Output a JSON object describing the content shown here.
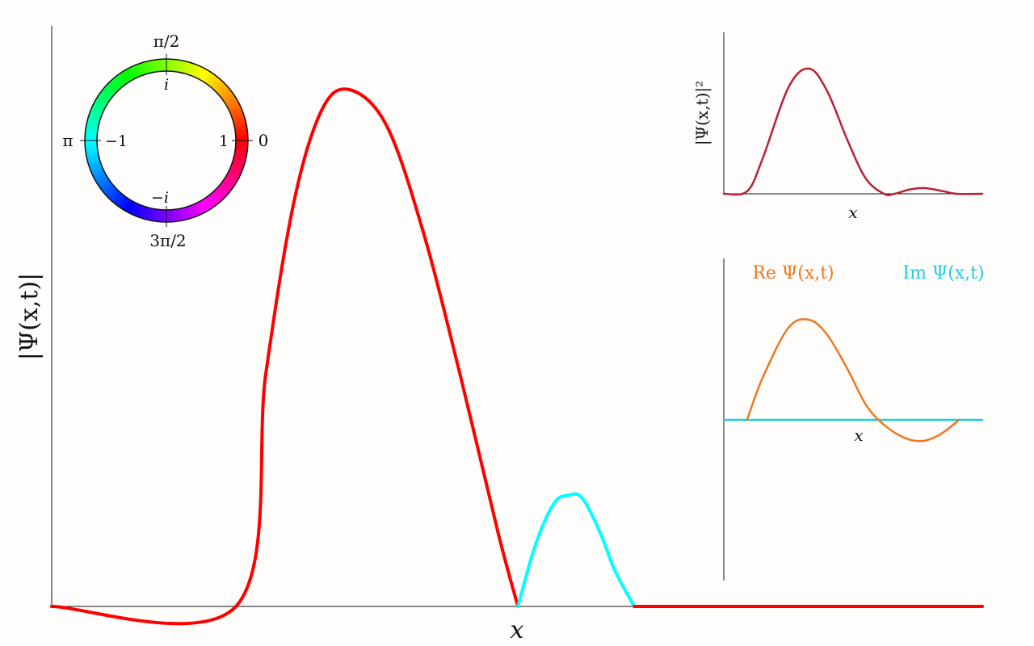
{
  "chart_data": [
    {
      "type": "line",
      "title": "",
      "xlabel": "x",
      "ylabel": "|Ψ(x,t)|",
      "color_encoding": "phase of Ψ (hue wheel)",
      "colors": {
        "positive": "#ff0000",
        "negative": "#00ffff"
      },
      "series": [
        {
          "phase": "0",
          "x": [
            0.0,
            0.198,
            0.23,
            0.26,
            0.29,
            0.32,
            0.36,
            0.4,
            0.44,
            0.48,
            0.501
          ],
          "y": [
            0.0,
            0.0,
            0.45,
            0.78,
            0.96,
            1.0,
            0.93,
            0.72,
            0.44,
            0.14,
            0.0
          ]
        },
        {
          "phase": "π",
          "x": [
            0.501,
            0.52,
            0.54,
            0.555,
            0.57,
            0.59,
            0.605,
            0.626
          ],
          "y": [
            0.0,
            0.12,
            0.2,
            0.215,
            0.21,
            0.14,
            0.07,
            0.0
          ]
        },
        {
          "phase": "0",
          "x": [
            0.626,
            1.0
          ],
          "y": [
            0.0,
            0.0
          ]
        }
      ]
    },
    {
      "type": "line",
      "xlabel": "x",
      "ylabel": "|Ψ(x,t)|²",
      "series": [
        {
          "color": "#b5223a",
          "x": [
            0.0,
            0.09,
            0.15,
            0.25,
            0.33,
            0.4,
            0.48,
            0.55,
            0.62,
            0.66,
            0.72,
            0.78,
            0.85,
            0.9,
            1.0
          ],
          "y": [
            0.0,
            0.02,
            0.28,
            0.85,
            1.0,
            0.82,
            0.42,
            0.12,
            0.0,
            0.0,
            0.035,
            0.045,
            0.02,
            0.0,
            0.0
          ]
        }
      ]
    },
    {
      "type": "line",
      "xlabel": "x",
      "legend": [
        "Re Ψ(x,t)",
        "Im Ψ(x,t)"
      ],
      "series": [
        {
          "name": "Re Ψ(x,t)",
          "color": "#ee7722",
          "x": [
            0.09,
            0.15,
            0.25,
            0.33,
            0.4,
            0.48,
            0.55,
            0.62,
            0.7,
            0.77,
            0.84,
            0.91
          ],
          "y": [
            0.0,
            0.42,
            0.92,
            1.0,
            0.85,
            0.5,
            0.15,
            -0.05,
            -0.18,
            -0.21,
            -0.14,
            0.0
          ]
        },
        {
          "name": "Im Ψ(x,t)",
          "color": "#22ccdd",
          "x": [
            0.0,
            1.0
          ],
          "y": [
            0.0,
            0.0
          ]
        }
      ]
    }
  ],
  "phase_wheel": {
    "label_top": "π/2",
    "label_bottom": "3π/2",
    "label_left": "π",
    "label_right": "0",
    "inner_top": "i",
    "inner_bottom": "−i",
    "inner_left": "−1",
    "inner_right": "1"
  },
  "inset_top": {
    "xlabel": "x",
    "ylabel": "|Ψ(x,t)|²"
  },
  "inset_bottom": {
    "xlabel": "x",
    "legend_re": "Re Ψ(x,t)",
    "legend_im": "Im Ψ(x,t)"
  },
  "main": {
    "xlabel": "x",
    "ylabel": "|Ψ(x,t)|"
  }
}
